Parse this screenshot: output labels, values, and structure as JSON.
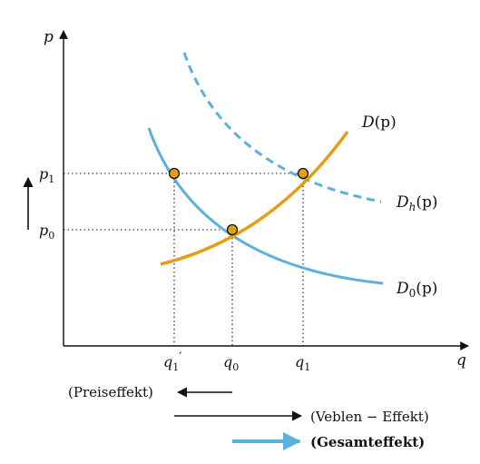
{
  "axes": {
    "y_label": "p",
    "x_label": "q"
  },
  "y_ticks": {
    "p1": {
      "base": "p",
      "sub": "1"
    },
    "p0": {
      "base": "p",
      "sub": "0"
    }
  },
  "x_ticks": {
    "q1_prime": {
      "base": "q",
      "sub": "1",
      "prime": "′"
    },
    "q0": {
      "base": "q",
      "sub": "0"
    },
    "q1": {
      "base": "q",
      "sub": "1"
    }
  },
  "curves": {
    "supply": {
      "base": "D",
      "arg": "(p)",
      "color": "#E3A016"
    },
    "demand_h": {
      "base": "D",
      "sub": "h",
      "arg": "(p)",
      "color": "#5BB1DD"
    },
    "demand_0": {
      "base": "D",
      "sub": "0",
      "arg": "(p)",
      "color": "#5BB1DD"
    }
  },
  "legend": {
    "price_effect": "(Preiseffekt)",
    "veblen_effect": "(Veblen − Effekt)",
    "total_effect": "(Gesamteffekt)"
  },
  "colors": {
    "axis": "#111111",
    "point_fill": "#E3A016",
    "blue": "#5BB1DD",
    "orange": "#E3A016"
  }
}
